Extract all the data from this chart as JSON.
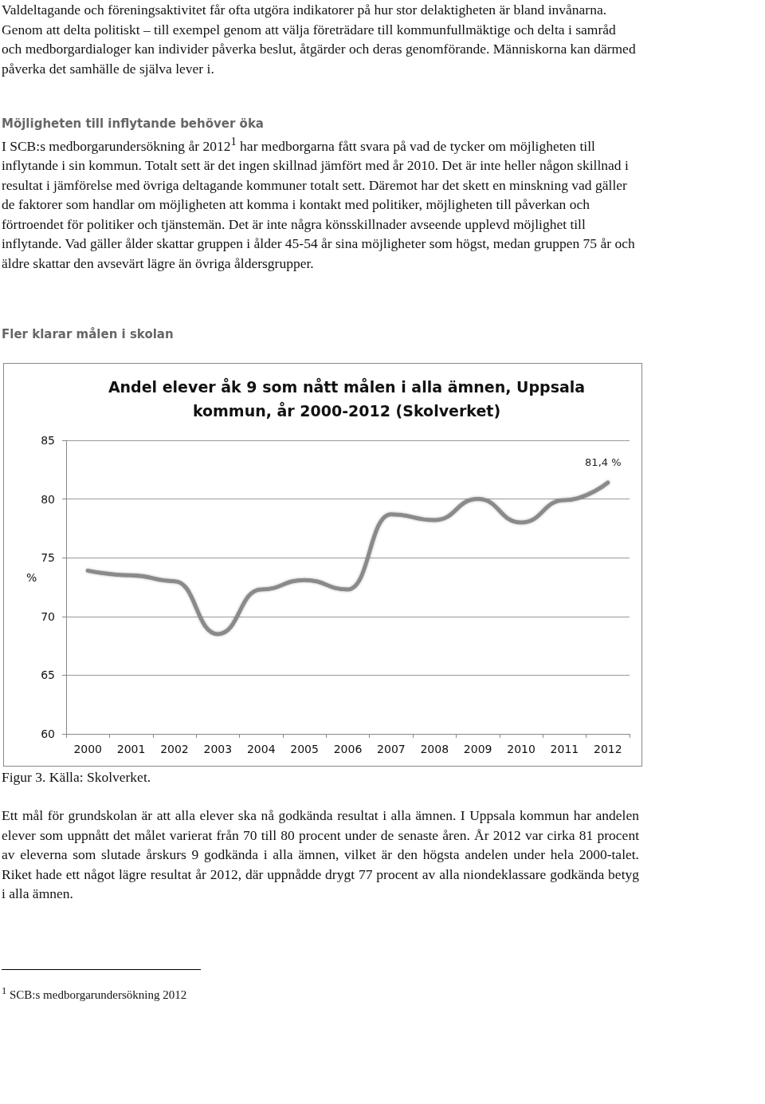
{
  "chart_data": {
    "type": "line",
    "title": "Andel elever åk 9 som nått målen i alla ämnen, Uppsala kommun, år 2000-2012 (Skolverket)",
    "ylabel": "%",
    "categories": [
      "2000",
      "2001",
      "2002",
      "2003",
      "2004",
      "2005",
      "2006",
      "2007",
      "2008",
      "2009",
      "2010",
      "2011",
      "2012"
    ],
    "series": [
      {
        "color": "#8a8a8a",
        "values": [
          73.9,
          73.5,
          73.0,
          68.5,
          72.3,
          73.1,
          72.3,
          78.7,
          78.2,
          80.0,
          78.0,
          79.9,
          81.4
        ],
        "value_labels": [
          null,
          null,
          null,
          null,
          null,
          null,
          null,
          null,
          null,
          null,
          null,
          null,
          "81,4 %"
        ]
      }
    ],
    "ylim": [
      60,
      85
    ],
    "yticks": [
      60,
      65,
      70,
      75,
      80,
      85
    ],
    "grid": "y",
    "annotations": [
      "Valdeltagande och föreningsaktivitet får ofta utgöra indikatorer på hur stor delaktigheten är bland invånarna. Genom att delta politiskt – till exempel genom att välja företrädare till kommunfullmäktige och delta i samråd och medborgardialoger kan individer påverka beslut, åtgärder och deras genomförande. Människorna kan därmed påverka det samhälle de själva lever i.",
      "Möjligheten till inflytande behöver öka",
      "I SCB:s medborgarundersökning år 2012$^{1}$ har medborgarna fått svara på vad de tycker om möjligheten till inflytande i sin kommun. Totalt sett är det ingen skillnad jämfört med år 2010. Det är inte heller någon skillnad i resultat i jämförelse med övriga deltagande kommuner totalt sett. Däremot har det skett en minskning vad gäller de faktorer som handlar om möjligheten att komma i kontakt med politiker, möjligheten till påverkan och förtroendet för politiker och tjänstemän. Det är inte några könsskillnader avseende upplevd möjlighet till inflytande. Vad gäller ålder skattar gruppen i ålder 45-54 år sina möjligheter som högst, medan gruppen 75 år och äldre skattar den avsevärt lägre än övriga åldersgrupper.",
      "Fler klarar målen i skolan",
      "Figur 3. Källa: Skolverket.",
      "Ett mål för grundskolan är att alla elever ska nå godkända resultat i alla ämnen. I Uppsala kommun har andelen elever som uppnått det målet varierat från 70 till 80 procent under de senaste åren. År 2012 var cirka 81 procent av eleverna som slutade årskurs 9 godkända i alla ämnen, vilket är den högsta andelen under hela 2000-talet. Riket hade ett något lägre resultat år 2012, där uppnådde drygt 77 procent av alla niondeklassare godkända betyg i alla ämnen.",
      "$^{1}$ SCB:s medborgarundersökning 2012"
    ]
  }
}
